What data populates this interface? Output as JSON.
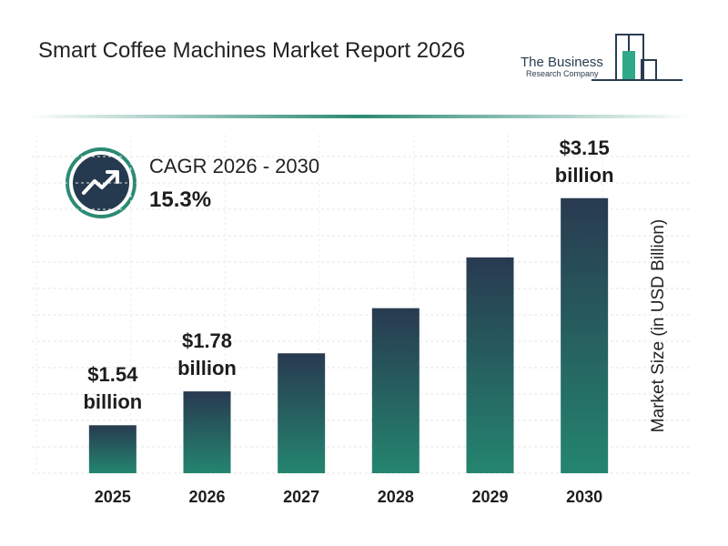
{
  "chart_data": {
    "type": "bar",
    "title": "Smart Coffee Machines Market Report 2026",
    "y_label": "Market Size (in USD Billion)",
    "categories": [
      "2025",
      "2026",
      "2027",
      "2028",
      "2029",
      "2030"
    ],
    "values": [
      1.54,
      1.78,
      2.05,
      2.37,
      2.73,
      3.15
    ],
    "value_labels": [
      "$1.54 billion",
      "$1.78 billion",
      null,
      null,
      null,
      "$3.15 billion"
    ],
    "gradient_colors": [
      "#283a50",
      "#24856f"
    ],
    "ylim": [
      1.2,
      3.6
    ],
    "grid": true
  },
  "cagr": {
    "label": "CAGR 2026 - 2030",
    "value": "15.3%"
  },
  "logo": {
    "name": "The Business",
    "subname": "Research Company"
  }
}
